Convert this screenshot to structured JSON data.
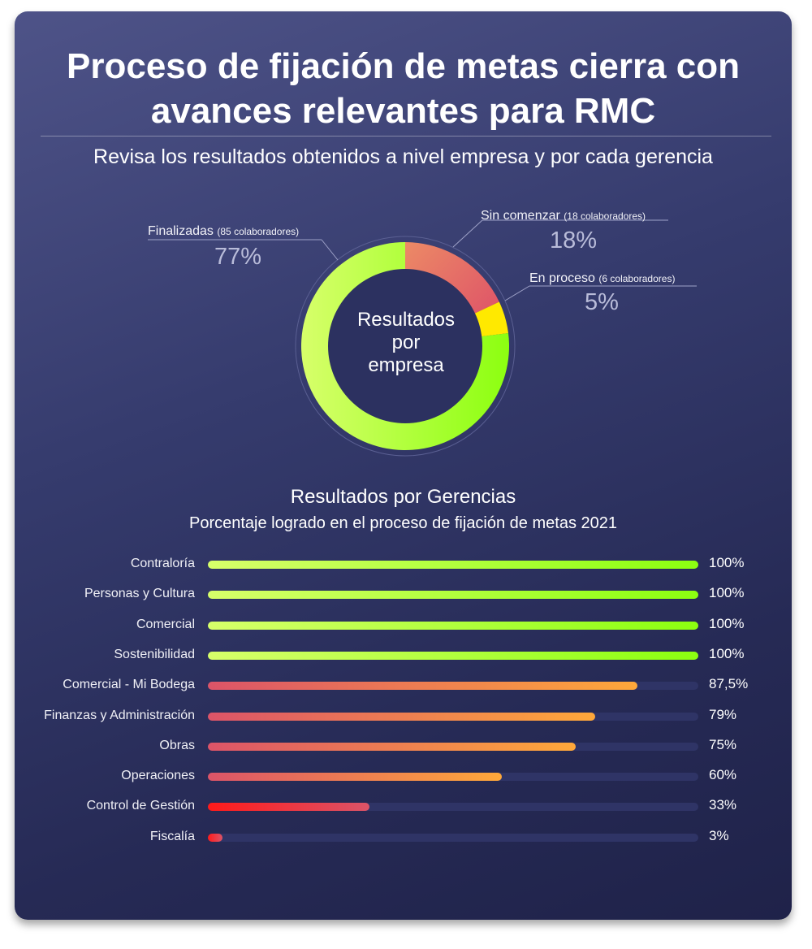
{
  "header": {
    "title_line1": "Proceso de fijación de metas cierra con",
    "title_line2": "avances relevantes para RMC",
    "subtitle": "Revisa los resultados obtenidos a nivel empresa y por cada gerencia"
  },
  "donut": {
    "center_line1": "Resultados",
    "center_line2": "por",
    "center_line3": "empresa",
    "finalizadas": {
      "name": "Finalizadas",
      "detail": "(85 colaboradores)",
      "pct_label": "77%"
    },
    "sin_comenzar": {
      "name": "Sin comenzar",
      "detail": "(18 colaboradores)",
      "pct_label": "18%"
    },
    "en_proceso": {
      "name": "En proceso",
      "detail": "(6 colaboradores)",
      "pct_label": "5%"
    }
  },
  "bars_section": {
    "title": "Resultados por Gerencias",
    "subtitle": "Porcentaje logrado en el proceso de fijación de metas 2021"
  },
  "colors": {
    "green_start": "#d7ff6a",
    "green_end": "#8cff10",
    "orange_start": "#dc5468",
    "orange_end": "#ffa83a",
    "red_start": "#ff1a1a",
    "red_end": "#db5468",
    "yellow": "#ffe900",
    "track": "#2f3466"
  },
  "chart_data": [
    {
      "type": "pie",
      "title": "Resultados por empresa",
      "categories": [
        "Finalizadas",
        "Sin comenzar",
        "En proceso"
      ],
      "values": [
        77,
        18,
        5
      ],
      "counts": [
        85,
        18,
        6
      ],
      "unit": "%"
    },
    {
      "type": "bar",
      "orientation": "horizontal",
      "title": "Resultados por Gerencias",
      "subtitle": "Porcentaje logrado en el proceso de fijación de metas 2021",
      "categories": [
        "Contraloría",
        "Personas y Cultura",
        "Comercial",
        "Sostenibilidad",
        "Comercial - Mi Bodega",
        "Finanzas y Administración",
        "Obras",
        "Operaciones",
        "Control de Gestión",
        "Fiscalía"
      ],
      "values": [
        100,
        100,
        100,
        100,
        87.5,
        79,
        75,
        60,
        33,
        3
      ],
      "value_labels": [
        "100%",
        "100%",
        "100%",
        "100%",
        "87,5%",
        "79%",
        "75%",
        "60%",
        "33%",
        "3%"
      ],
      "xlim": [
        0,
        100
      ]
    }
  ]
}
